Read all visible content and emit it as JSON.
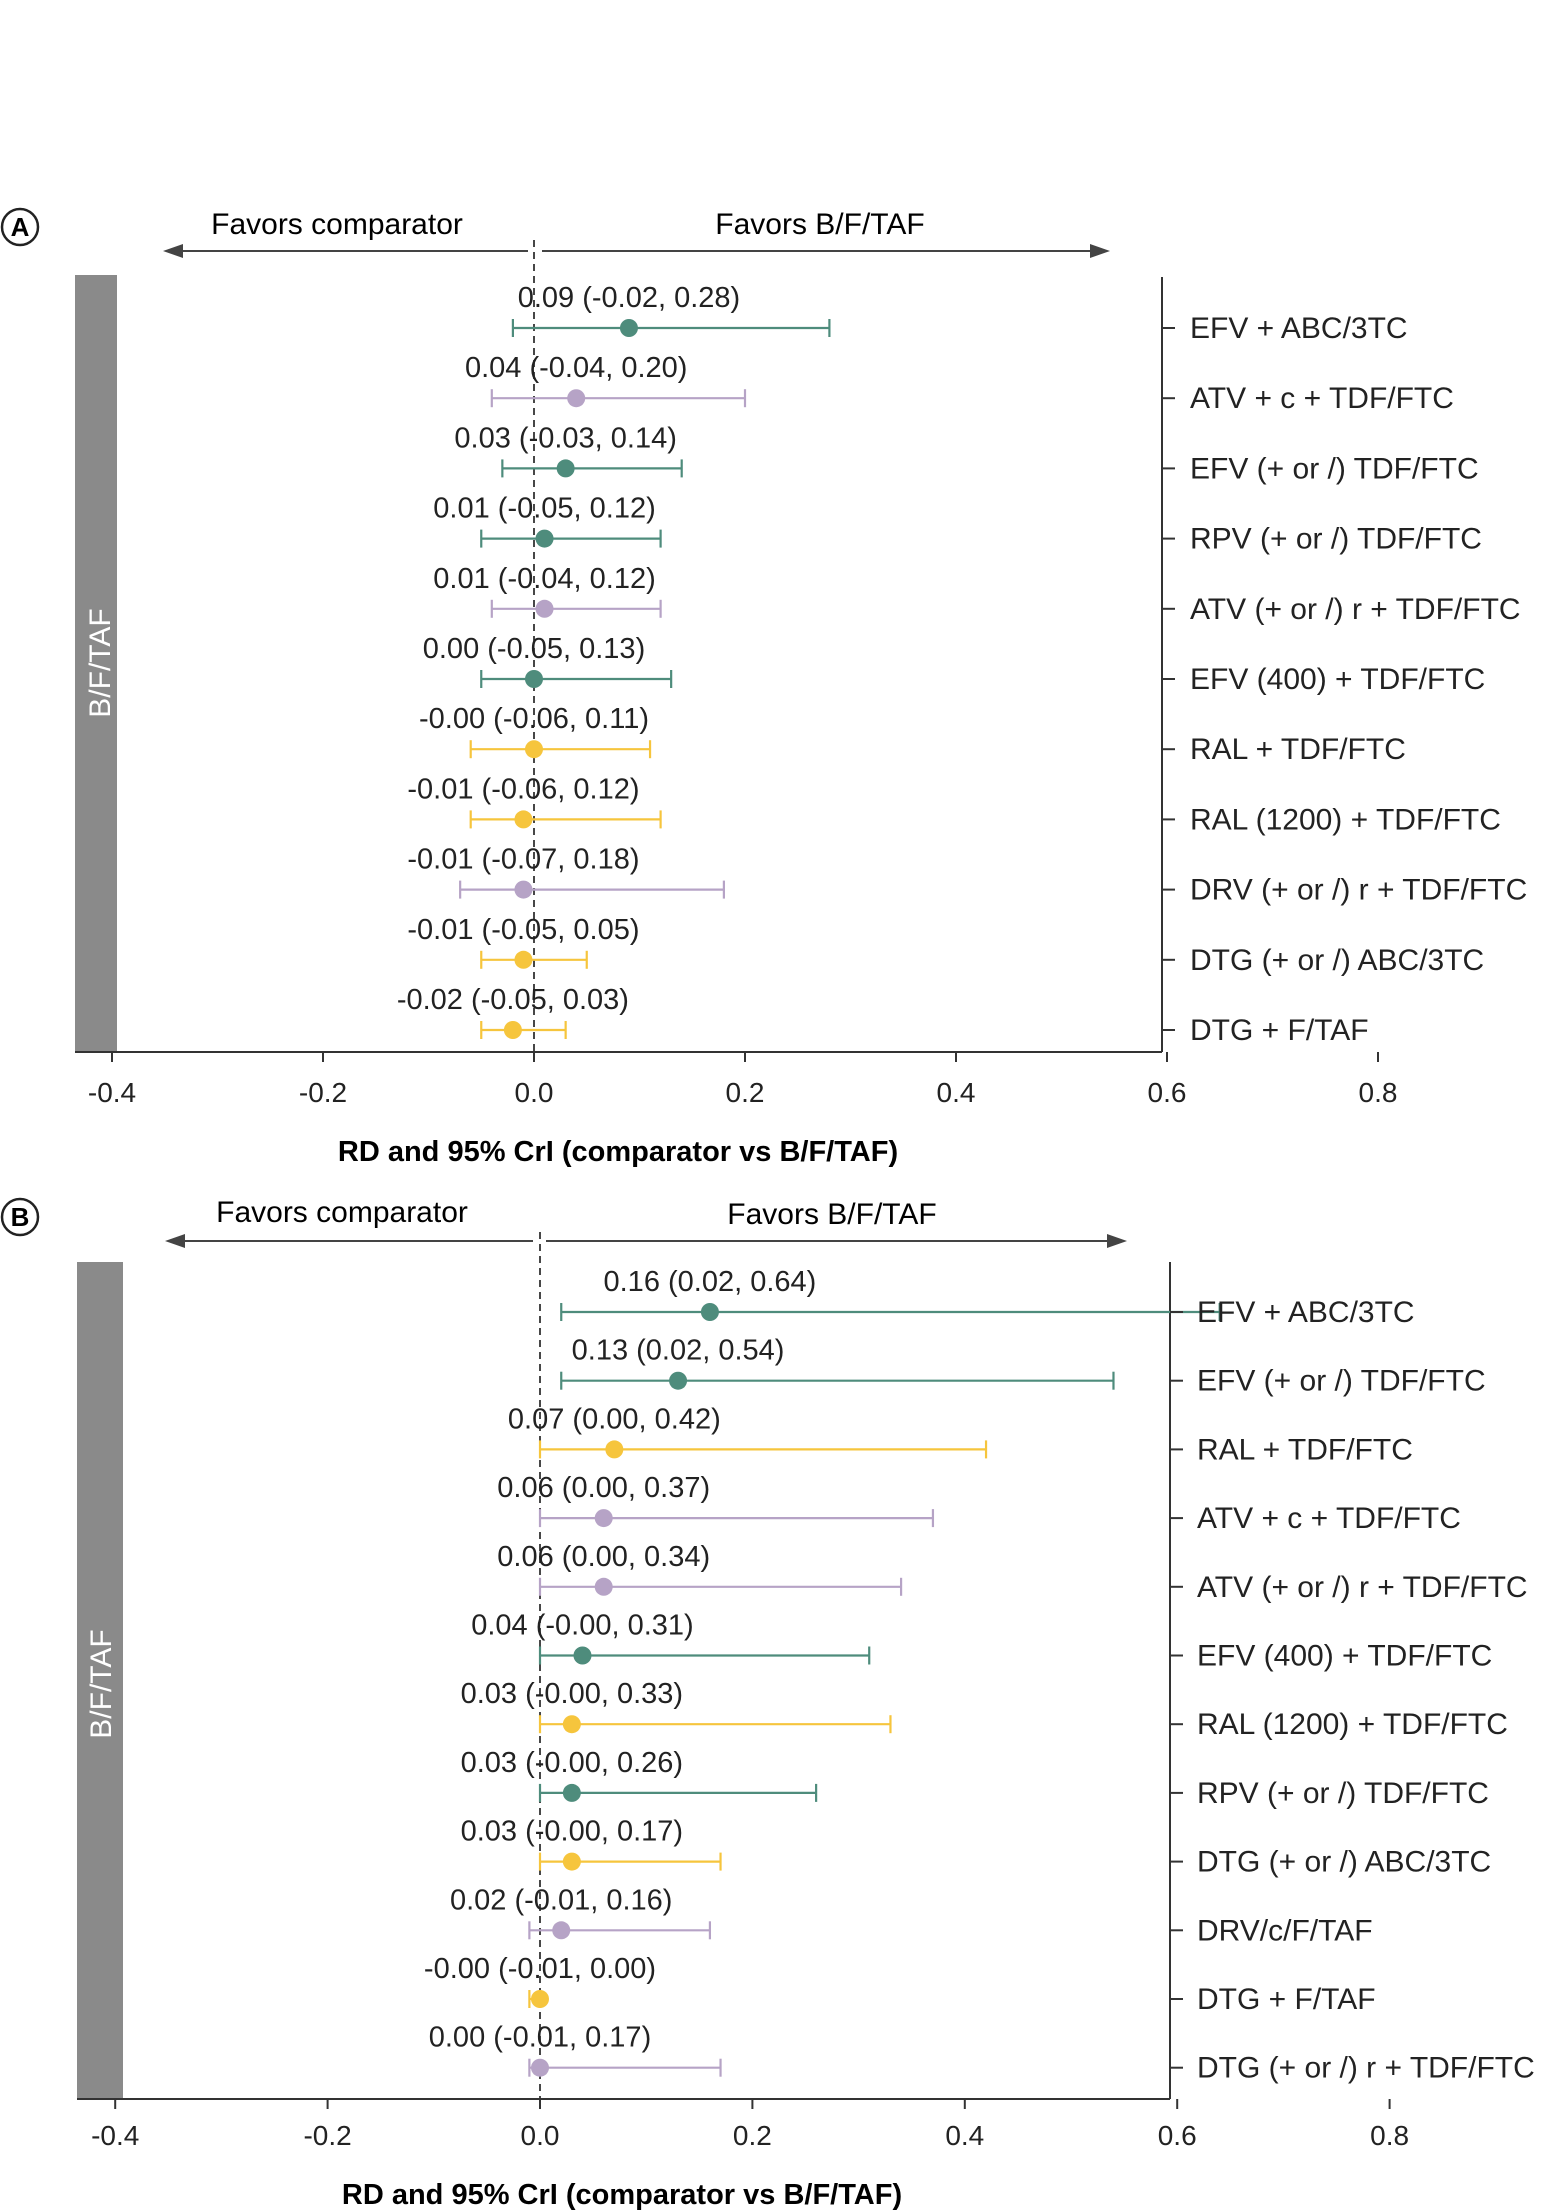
{
  "panels": [
    {
      "letter": "A",
      "favors_left": "Favors comparator",
      "favors_right": "Favors B/F/TAF",
      "reference_label": "B/F/TAF",
      "xlabel": "RD and 95% CrI (comparator vs B/F/TAF)"
    },
    {
      "letter": "B",
      "favors_left": "Favors comparator",
      "favors_right": "Favors B/F/TAF",
      "reference_label": "B/F/TAF",
      "xlabel": "RD and 95% CrI (comparator vs B/F/TAF)"
    }
  ],
  "colors": {
    "green": "#4e8c7c",
    "purple": "#b6a3c6",
    "yellow": "#f6c53d",
    "refbar": "#8a8a8a",
    "axis": "#333333"
  },
  "chart_data": [
    {
      "type": "forest",
      "xlim": [
        -0.55,
        0.84
      ],
      "xticks": [
        -0.4,
        -0.2,
        0.0,
        0.2,
        0.4,
        0.6,
        0.8
      ],
      "xtick_labels": [
        "-0.4",
        "-0.2",
        "0.0",
        "0.2",
        "0.4",
        "0.6",
        "0.8"
      ],
      "xlabel": "RD and 95% CrI (comparator vs B/F/TAF)",
      "rows": [
        {
          "label": "EFV + ABC/3TC",
          "value": 0.09,
          "low": -0.02,
          "high": 0.28,
          "text": "0.09 (-0.02, 0.28)",
          "color": "green"
        },
        {
          "label": "ATV + c + TDF/FTC",
          "value": 0.04,
          "low": -0.04,
          "high": 0.2,
          "text": "0.04 (-0.04, 0.20)",
          "color": "purple"
        },
        {
          "label": "EFV (+ or /) TDF/FTC",
          "value": 0.03,
          "low": -0.03,
          "high": 0.14,
          "text": "0.03 (-0.03, 0.14)",
          "color": "green"
        },
        {
          "label": "RPV (+ or /) TDF/FTC",
          "value": 0.01,
          "low": -0.05,
          "high": 0.12,
          "text": "0.01 (-0.05, 0.12)",
          "color": "green"
        },
        {
          "label": "ATV (+ or /) r + TDF/FTC",
          "value": 0.01,
          "low": -0.04,
          "high": 0.12,
          "text": "0.01 (-0.04, 0.12)",
          "color": "purple"
        },
        {
          "label": "EFV (400) + TDF/FTC",
          "value": 0.0,
          "low": -0.05,
          "high": 0.13,
          "text": "0.00 (-0.05, 0.13)",
          "color": "green"
        },
        {
          "label": "RAL + TDF/FTC",
          "value": -0.0,
          "low": -0.06,
          "high": 0.11,
          "text": "-0.00 (-0.06, 0.11)",
          "color": "yellow"
        },
        {
          "label": "RAL (1200) + TDF/FTC",
          "value": -0.01,
          "low": -0.06,
          "high": 0.12,
          "text": "-0.01 (-0.06, 0.12)",
          "color": "yellow"
        },
        {
          "label": "DRV (+ or /) r + TDF/FTC",
          "value": -0.01,
          "low": -0.07,
          "high": 0.18,
          "text": "-0.01 (-0.07, 0.18)",
          "color": "purple"
        },
        {
          "label": "DTG (+ or /) ABC/3TC",
          "value": -0.01,
          "low": -0.05,
          "high": 0.05,
          "text": "-0.01 (-0.05, 0.05)",
          "color": "yellow"
        },
        {
          "label": "DTG + F/TAF",
          "value": -0.02,
          "low": -0.05,
          "high": 0.03,
          "text": "-0.02 (-0.05, 0.03)",
          "color": "yellow"
        }
      ]
    },
    {
      "type": "forest",
      "xlim": [
        -0.55,
        0.84
      ],
      "xticks": [
        -0.4,
        -0.2,
        0.0,
        0.2,
        0.4,
        0.6,
        0.8
      ],
      "xtick_labels": [
        "-0.4",
        "-0.2",
        "0.0",
        "0.2",
        "0.4",
        "0.6",
        "0.8"
      ],
      "xlabel": "RD and 95% CrI (comparator vs B/F/TAF)",
      "rows": [
        {
          "label": "EFV + ABC/3TC",
          "value": 0.16,
          "low": 0.02,
          "high": 0.64,
          "text": "0.16 (0.02, 0.64)",
          "color": "green"
        },
        {
          "label": "EFV (+ or /) TDF/FTC",
          "value": 0.13,
          "low": 0.02,
          "high": 0.54,
          "text": "0.13 (0.02, 0.54)",
          "color": "green"
        },
        {
          "label": "RAL + TDF/FTC",
          "value": 0.07,
          "low": 0.0,
          "high": 0.42,
          "text": "0.07 (0.00, 0.42)",
          "color": "yellow"
        },
        {
          "label": "ATV + c + TDF/FTC",
          "value": 0.06,
          "low": 0.0,
          "high": 0.37,
          "text": "0.06 (0.00, 0.37)",
          "color": "purple"
        },
        {
          "label": "ATV (+ or /) r + TDF/FTC",
          "value": 0.06,
          "low": 0.0,
          "high": 0.34,
          "text": "0.06 (0.00, 0.34)",
          "color": "purple"
        },
        {
          "label": "EFV (400) + TDF/FTC",
          "value": 0.04,
          "low": -0.0,
          "high": 0.31,
          "text": "0.04 (-0.00, 0.31)",
          "color": "green"
        },
        {
          "label": "RAL (1200) + TDF/FTC",
          "value": 0.03,
          "low": -0.0,
          "high": 0.33,
          "text": "0.03 (-0.00, 0.33)",
          "color": "yellow"
        },
        {
          "label": "RPV (+ or /) TDF/FTC",
          "value": 0.03,
          "low": -0.0,
          "high": 0.26,
          "text": "0.03 (-0.00, 0.26)",
          "color": "green"
        },
        {
          "label": "DTG (+ or /) ABC/3TC",
          "value": 0.03,
          "low": -0.0,
          "high": 0.17,
          "text": "0.03 (-0.00, 0.17)",
          "color": "yellow"
        },
        {
          "label": "DRV/c/F/TAF",
          "value": 0.02,
          "low": -0.01,
          "high": 0.16,
          "text": "0.02 (-0.01, 0.16)",
          "color": "purple"
        },
        {
          "label": "DTG + F/TAF",
          "value": -0.0,
          "low": -0.01,
          "high": 0.0,
          "text": "-0.00 (-0.01, 0.00)",
          "color": "yellow"
        },
        {
          "label": "DTG (+ or /) r + TDF/FTC",
          "value": 0.0,
          "low": -0.01,
          "high": 0.17,
          "text": "0.00 (-0.01, 0.17)",
          "color": "purple"
        }
      ]
    }
  ]
}
